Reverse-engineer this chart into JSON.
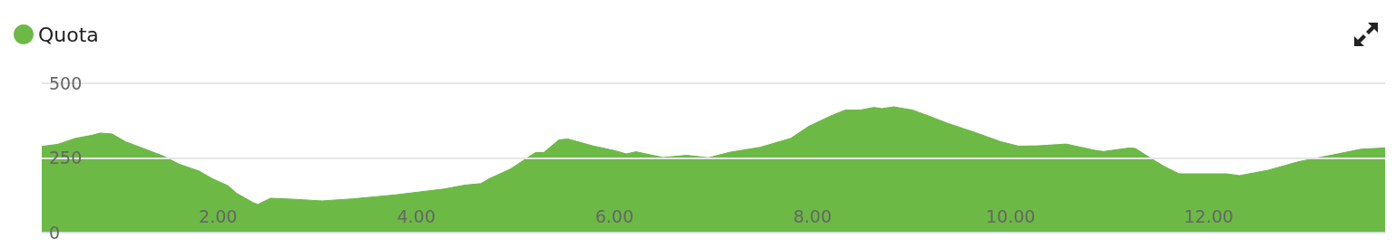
{
  "chart_data": {
    "type": "area",
    "xlim": [
      0.22,
      13.78
    ],
    "xticks": [
      {
        "value": 2,
        "label": "2.00"
      },
      {
        "value": 4,
        "label": "4.00"
      },
      {
        "value": 6,
        "label": "6.00"
      },
      {
        "value": 8,
        "label": "8.00"
      },
      {
        "value": 10,
        "label": "10.00"
      },
      {
        "value": 12,
        "label": "12.00"
      }
    ],
    "ylim": [
      0,
      500
    ],
    "yticks": [
      0,
      250,
      500
    ],
    "grid": "y",
    "legend": "top left",
    "marker": "none",
    "series": [
      {
        "name": "Quota",
        "color": "#6cb946",
        "x": [
          0.22,
          0.38,
          0.56,
          0.72,
          0.81,
          0.93,
          1.07,
          1.24,
          1.45,
          1.61,
          1.81,
          1.94,
          2.1,
          2.19,
          2.35,
          2.4,
          2.53,
          2.74,
          3.05,
          3.36,
          3.78,
          4.28,
          4.49,
          4.65,
          4.74,
          4.95,
          5.2,
          5.29,
          5.44,
          5.53,
          5.78,
          6.0,
          6.12,
          6.22,
          6.49,
          6.73,
          6.95,
          7.16,
          7.47,
          7.78,
          7.96,
          8.18,
          8.33,
          8.48,
          8.62,
          8.7,
          8.82,
          9.01,
          9.2,
          9.36,
          9.64,
          9.9,
          10.08,
          10.28,
          10.56,
          10.85,
          10.94,
          11.2,
          11.26,
          11.42,
          11.55,
          11.7,
          11.92,
          12.18,
          12.31,
          12.6,
          12.91,
          13.23,
          13.54,
          13.78
        ],
        "values": [
          288,
          295,
          315,
          325,
          333,
          330,
          303,
          282,
          255,
          228,
          205,
          180,
          156,
          130,
          100,
          93,
          114,
          111,
          105,
          112,
          125,
          145,
          158,
          163,
          180,
          212,
          267,
          268,
          310,
          313,
          290,
          274,
          263,
          270,
          251,
          258,
          250,
          268,
          285,
          315,
          355,
          390,
          410,
          410,
          419,
          415,
          421,
          410,
          387,
          366,
          335,
          304,
          289,
          290,
          296,
          275,
          271,
          283,
          281,
          247,
          221,
          196,
          196,
          196,
          190,
          208,
          237,
          258,
          279,
          283
        ]
      }
    ]
  }
}
